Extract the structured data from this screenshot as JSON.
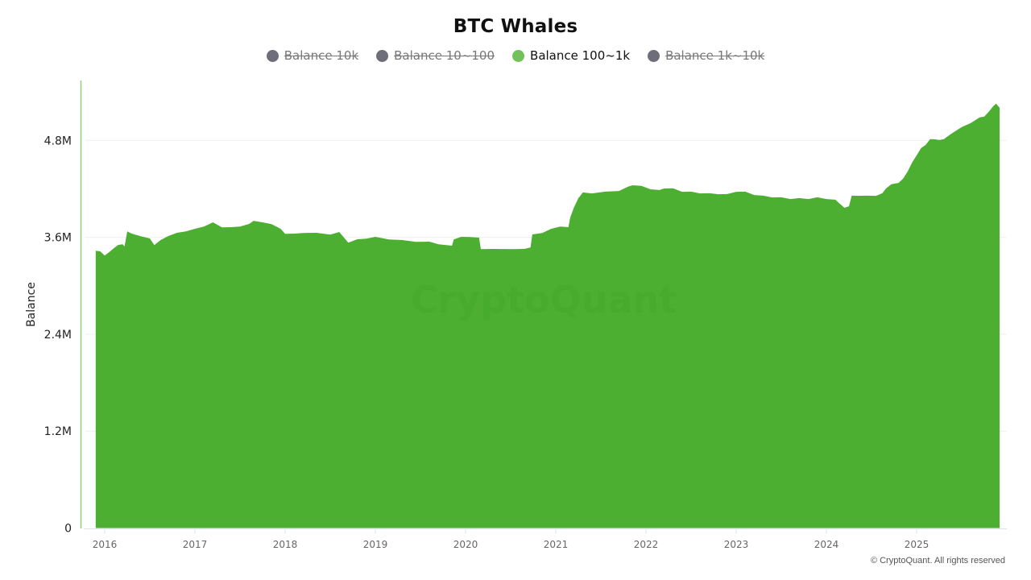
{
  "title": "BTC Whales",
  "legend": [
    {
      "label": "Balance 10k",
      "color": "#6e6e7a",
      "active": false
    },
    {
      "label": "Balance 10~100",
      "color": "#6e6e7a",
      "active": false
    },
    {
      "label": "Balance 100~1k",
      "color": "#72c15a",
      "active": true
    },
    {
      "label": "Balance 1k~10k",
      "color": "#6e6e7a",
      "active": false
    }
  ],
  "watermark": "CryptoQuant",
  "credit": "© CryptoQuant. All rights reserved",
  "colors": {
    "series_fill": "#4caf31",
    "axis_line": "#8fd07a"
  },
  "chart_data": {
    "type": "area",
    "title": "BTC Whales",
    "xlabel": "",
    "ylabel": "Balance",
    "ylim": [
      0,
      5530000
    ],
    "xlim": [
      2015.9,
      2025.92
    ],
    "y_ticks": [
      {
        "value": 0,
        "label": "0"
      },
      {
        "value": 1200000,
        "label": "1.2M"
      },
      {
        "value": 2400000,
        "label": "2.4M"
      },
      {
        "value": 3600000,
        "label": "3.6M"
      },
      {
        "value": 4800000,
        "label": "4.8M"
      }
    ],
    "x_ticks": [
      "2016",
      "2017",
      "2018",
      "2019",
      "2020",
      "2021",
      "2022",
      "2023",
      "2024",
      "2025"
    ],
    "grid": true,
    "legend_position": "top",
    "series": [
      {
        "name": "Balance 100~1k",
        "visible": true,
        "x": [
          2015.9,
          2015.95,
          2016.0,
          2016.05,
          2016.1,
          2016.15,
          2016.2,
          2016.22,
          2016.25,
          2016.3,
          2016.4,
          2016.5,
          2016.55,
          2016.62,
          2016.7,
          2016.8,
          2016.9,
          2017.0,
          2017.1,
          2017.2,
          2017.3,
          2017.4,
          2017.5,
          2017.6,
          2017.65,
          2017.75,
          2017.85,
          2017.95,
          2018.0,
          2018.1,
          2018.2,
          2018.35,
          2018.5,
          2018.6,
          2018.7,
          2018.8,
          2018.9,
          2019.0,
          2019.15,
          2019.3,
          2019.45,
          2019.6,
          2019.7,
          2019.85,
          2019.87,
          2019.95,
          2020.05,
          2020.15,
          2020.17,
          2020.3,
          2020.5,
          2020.65,
          2020.72,
          2020.74,
          2020.85,
          2020.95,
          2021.05,
          2021.14,
          2021.16,
          2021.2,
          2021.25,
          2021.3,
          2021.4,
          2021.55,
          2021.7,
          2021.8,
          2021.85,
          2021.95,
          2022.05,
          2022.15,
          2022.2,
          2022.3,
          2022.4,
          2022.5,
          2022.6,
          2022.7,
          2022.8,
          2022.9,
          2023.0,
          2023.1,
          2023.2,
          2023.3,
          2023.4,
          2023.5,
          2023.6,
          2023.7,
          2023.8,
          2023.9,
          2024.0,
          2024.1,
          2024.15,
          2024.2,
          2024.25,
          2024.28,
          2024.35,
          2024.45,
          2024.55,
          2024.62,
          2024.66,
          2024.72,
          2024.8,
          2024.85,
          2024.9,
          2024.95,
          2025.0,
          2025.05,
          2025.1,
          2025.15,
          2025.2,
          2025.25,
          2025.3,
          2025.35,
          2025.4,
          2025.5,
          2025.6,
          2025.7,
          2025.75,
          2025.8,
          2025.85,
          2025.88,
          2025.92
        ],
        "values": [
          3440000,
          3420000,
          3380000,
          3410000,
          3470000,
          3500000,
          3520000,
          3480000,
          3680000,
          3640000,
          3620000,
          3580000,
          3510000,
          3560000,
          3620000,
          3650000,
          3680000,
          3700000,
          3740000,
          3780000,
          3730000,
          3720000,
          3740000,
          3760000,
          3810000,
          3780000,
          3770000,
          3700000,
          3650000,
          3640000,
          3660000,
          3650000,
          3640000,
          3660000,
          3540000,
          3570000,
          3590000,
          3600000,
          3580000,
          3560000,
          3550000,
          3540000,
          3520000,
          3490000,
          3580000,
          3600000,
          3610000,
          3590000,
          3460000,
          3450000,
          3460000,
          3450000,
          3480000,
          3630000,
          3660000,
          3700000,
          3740000,
          3720000,
          3850000,
          3960000,
          4090000,
          4150000,
          4150000,
          4160000,
          4180000,
          4220000,
          4250000,
          4230000,
          4200000,
          4180000,
          4210000,
          4200000,
          4170000,
          4160000,
          4150000,
          4140000,
          4140000,
          4130000,
          4170000,
          4160000,
          4130000,
          4110000,
          4100000,
          4090000,
          4080000,
          4080000,
          4080000,
          4090000,
          4080000,
          4060000,
          4020000,
          3960000,
          3990000,
          4110000,
          4120000,
          4110000,
          4120000,
          4140000,
          4210000,
          4250000,
          4280000,
          4320000,
          4420000,
          4520000,
          4620000,
          4700000,
          4750000,
          4810000,
          4820000,
          4800000,
          4820000,
          4850000,
          4900000,
          4960000,
          5020000,
          5080000,
          5100000,
          5150000,
          5230000,
          5250000,
          5210000
        ]
      },
      {
        "name": "Balance 10k",
        "visible": false
      },
      {
        "name": "Balance 10~100",
        "visible": false
      },
      {
        "name": "Balance 1k~10k",
        "visible": false
      }
    ]
  }
}
